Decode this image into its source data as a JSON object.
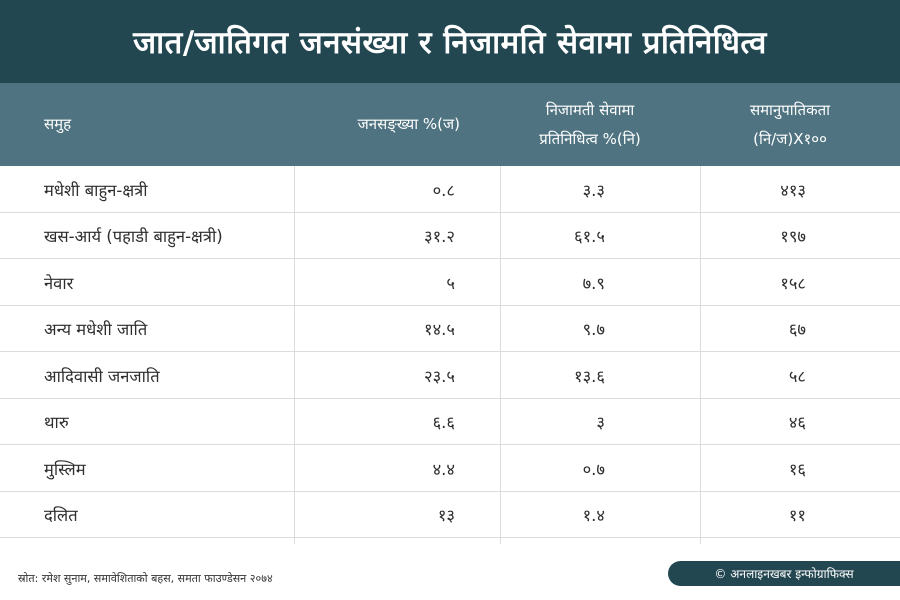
{
  "title": "जात/जातिगत जनसंख्या र निजामति सेवामा प्रतिनिधित्व",
  "colors": {
    "title_bg": "#234751",
    "header_bg": "#4f7380",
    "grid": "#dcdcdc"
  },
  "chart_data": {
    "type": "table",
    "columns": [
      {
        "line1": "समुह",
        "line2": ""
      },
      {
        "line1": "जनसङ्ख्या %(ज)",
        "line2": ""
      },
      {
        "line1": "निजामती सेवामा",
        "line2": "प्रतिनिधित्व %(नि)"
      },
      {
        "line1": "समानुपातिकता",
        "line2": "(नि/ज)X१००"
      }
    ],
    "rows": [
      {
        "group": "मधेशी बाहुन-क्षत्री",
        "population": "०.८",
        "representation": "३.३",
        "proportionality": "४१३"
      },
      {
        "group": "खस-आर्य (पहाडी बाहुन-क्षत्री)",
        "population": "३१.२",
        "representation": "६१.५",
        "proportionality": "१९७"
      },
      {
        "group": "नेवार",
        "population": "५",
        "representation": "७.९",
        "proportionality": "१५८"
      },
      {
        "group": "अन्य मधेशी जाति",
        "population": "१४.५",
        "representation": "९.७",
        "proportionality": "६७"
      },
      {
        "group": "आदिवासी जनजाति",
        "population": "२३.५",
        "representation": "१३.६",
        "proportionality": "५८"
      },
      {
        "group": "थारु",
        "population": "६.६",
        "representation": "३",
        "proportionality": "४६"
      },
      {
        "group": "मुस्लिम",
        "population": "४.४",
        "representation": "०.७",
        "proportionality": "१६"
      },
      {
        "group": "दलित",
        "population": "१३",
        "representation": "१.४",
        "proportionality": "११"
      }
    ]
  },
  "footer": {
    "source": "स्रोत: रमेश सुनाम, समावेशिताको बहस, समता फाउण्डेसन २०७४",
    "credit": "© अनलाइनखबर इन्फोग्राफिक्स"
  }
}
